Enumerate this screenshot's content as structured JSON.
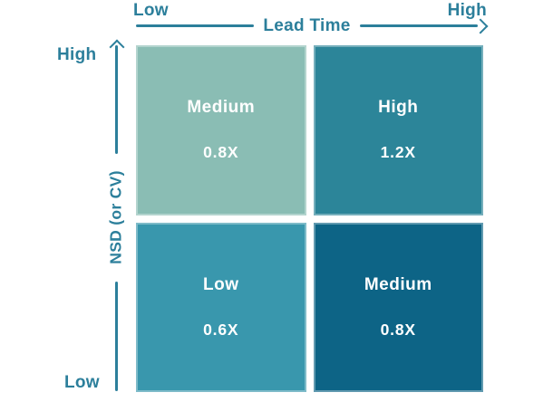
{
  "figure": {
    "type": "quadrant-matrix",
    "x_axis": {
      "label": "Lead Time",
      "min_label": "Low",
      "max_label": "High"
    },
    "y_axis": {
      "label": "NSD (or CV)",
      "min_label": "Low",
      "max_label": "High"
    },
    "quadrants": {
      "top_left": {
        "x": "Low Lead Time",
        "y": "High NSD",
        "level": "Medium",
        "multiplier": "0.8X",
        "color": "#8abdb4"
      },
      "top_right": {
        "x": "High Lead Time",
        "y": "High NSD",
        "level": "High",
        "multiplier": "1.2X",
        "color": "#2c8599"
      },
      "bottom_left": {
        "x": "Low Lead Time",
        "y": "Low NSD",
        "level": "Low",
        "multiplier": "0.6X",
        "color": "#3997ad"
      },
      "bottom_right": {
        "x": "High Lead Time",
        "y": "Low NSD",
        "level": "Medium",
        "multiplier": "0.8X",
        "color": "#0d6486"
      }
    },
    "colors": {
      "axis": "#2c7f9b",
      "quadrant_text": "#ffffff",
      "background": "#ffffff"
    }
  }
}
